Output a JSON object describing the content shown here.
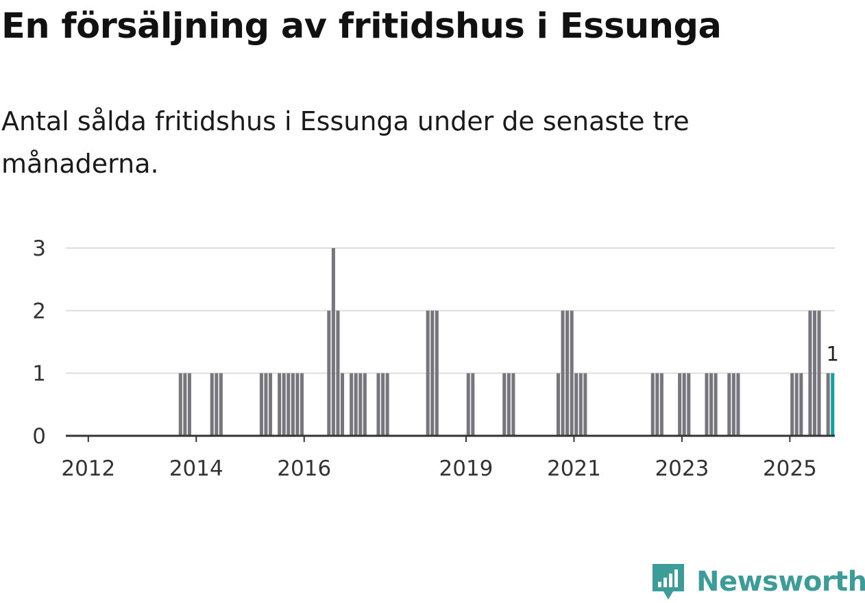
{
  "header": {
    "title": "En försäljning av fritidshus i Essunga",
    "subtitle": "Antal sålda fritidshus i Essunga under de senaste tre månaderna."
  },
  "brand": {
    "name": "Newsworthy",
    "color": "#3c9c98",
    "icon": "newsworthy-logo-icon"
  },
  "colors": {
    "bar": "#77767c",
    "highlight": "#12a0a0",
    "grid": "#dddddd",
    "axis": "#333333"
  },
  "chart_data": {
    "type": "bar",
    "title": "",
    "xlabel": "",
    "ylabel": "",
    "ylim": [
      0,
      3
    ],
    "yticks": [
      "0",
      "1",
      "2",
      "3"
    ],
    "xlim": [
      "2011-08",
      "2025-11"
    ],
    "xticks": [
      {
        "label": "2012",
        "date": "2012-01"
      },
      {
        "label": "2014",
        "date": "2014-01"
      },
      {
        "label": "2016",
        "date": "2016-01"
      },
      {
        "label": "2019",
        "date": "2019-01"
      },
      {
        "label": "2021",
        "date": "2021-01"
      },
      {
        "label": "2023",
        "date": "2023-01"
      },
      {
        "label": "2025",
        "date": "2025-01"
      }
    ],
    "grid": true,
    "highlight_label": "1",
    "series": [
      {
        "x": [
          "2013-09",
          "2013-10",
          "2013-11",
          "2014-04",
          "2014-05",
          "2014-06",
          "2015-03",
          "2015-04",
          "2015-05",
          "2015-07",
          "2015-08",
          "2015-09",
          "2015-10",
          "2015-11",
          "2015-12",
          "2016-06",
          "2016-07",
          "2016-08",
          "2016-09",
          "2016-11",
          "2016-12",
          "2017-01",
          "2017-02",
          "2017-05",
          "2017-06",
          "2017-07",
          "2018-04",
          "2018-05",
          "2018-06",
          "2019-01",
          "2019-02",
          "2019-09",
          "2019-10",
          "2019-11",
          "2020-09",
          "2020-10",
          "2020-11",
          "2020-12",
          "2021-01",
          "2021-02",
          "2021-03",
          "2022-06",
          "2022-07",
          "2022-08",
          "2022-12",
          "2023-01",
          "2023-02",
          "2023-06",
          "2023-07",
          "2023-08",
          "2023-11",
          "2023-12",
          "2024-01",
          "2025-01",
          "2025-02",
          "2025-03",
          "2025-05",
          "2025-06",
          "2025-07",
          "2025-09",
          "2025-10"
        ],
        "values": [
          1,
          1,
          1,
          1,
          1,
          1,
          1,
          1,
          1,
          1,
          1,
          1,
          1,
          1,
          1,
          2,
          3,
          2,
          1,
          1,
          1,
          1,
          1,
          1,
          1,
          1,
          2,
          2,
          2,
          1,
          1,
          1,
          1,
          1,
          1,
          2,
          2,
          2,
          1,
          1,
          1,
          1,
          1,
          1,
          1,
          1,
          1,
          1,
          1,
          1,
          1,
          1,
          1,
          1,
          1,
          1,
          2,
          2,
          2,
          1,
          1
        ]
      }
    ]
  }
}
